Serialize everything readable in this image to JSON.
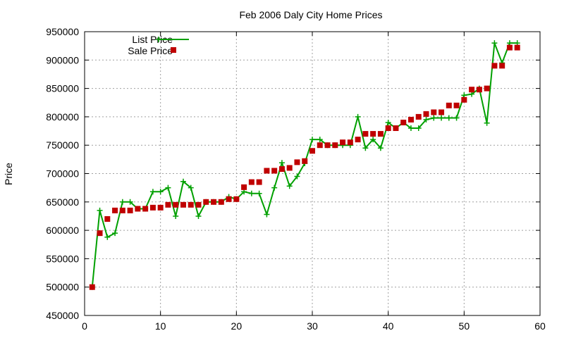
{
  "chart_data": {
    "type": "scatter",
    "title": "Feb 2006 Daly City Home Prices",
    "xlabel": "",
    "ylabel": "Price",
    "xlim": [
      0,
      60
    ],
    "ylim": [
      450000,
      950000
    ],
    "x_ticks": [
      0,
      10,
      20,
      30,
      40,
      50,
      60
    ],
    "y_ticks": [
      450000,
      500000,
      550000,
      600000,
      650000,
      700000,
      750000,
      800000,
      850000,
      900000,
      950000
    ],
    "grid": true,
    "legend_position": "top-left",
    "series": [
      {
        "name": "List Price",
        "style": "line-points",
        "color": "#00a000",
        "x": [
          1,
          2,
          3,
          4,
          5,
          6,
          7,
          8,
          9,
          10,
          11,
          12,
          13,
          14,
          15,
          16,
          17,
          18,
          19,
          20,
          21,
          22,
          23,
          24,
          25,
          26,
          27,
          28,
          29,
          30,
          31,
          32,
          33,
          34,
          35,
          36,
          37,
          38,
          39,
          40,
          41,
          42,
          43,
          44,
          45,
          46,
          47,
          48,
          49,
          50,
          51,
          52,
          53,
          54,
          55,
          56,
          57
        ],
        "y": [
          500000,
          635000,
          588000,
          595000,
          650000,
          650000,
          638000,
          638000,
          668000,
          668000,
          675000,
          625000,
          686000,
          675000,
          625000,
          650000,
          650000,
          650000,
          659000,
          655000,
          668000,
          665000,
          665000,
          628000,
          675000,
          719000,
          678000,
          695000,
          718000,
          760000,
          760000,
          750000,
          750000,
          750000,
          750000,
          800000,
          745000,
          760000,
          745000,
          790000,
          780000,
          790000,
          780000,
          780000,
          795000,
          798000,
          798000,
          798000,
          798000,
          838000,
          840000,
          850000,
          789000,
          930000,
          895000,
          930000,
          930000
        ]
      },
      {
        "name": "Sale Price",
        "style": "points",
        "color": "#c00000",
        "x": [
          1,
          2,
          3,
          4,
          5,
          6,
          7,
          8,
          9,
          10,
          11,
          12,
          13,
          14,
          15,
          16,
          17,
          18,
          19,
          20,
          21,
          22,
          23,
          24,
          25,
          26,
          27,
          28,
          29,
          30,
          31,
          32,
          33,
          34,
          35,
          36,
          37,
          38,
          39,
          40,
          41,
          42,
          43,
          44,
          45,
          46,
          47,
          48,
          49,
          50,
          51,
          52,
          53,
          54,
          55,
          56,
          57
        ],
        "y": [
          500000,
          595000,
          620000,
          635000,
          635000,
          635000,
          638000,
          638000,
          640000,
          640000,
          645000,
          645000,
          645000,
          645000,
          645000,
          650000,
          650000,
          650000,
          655000,
          655000,
          676000,
          685000,
          685000,
          705000,
          705000,
          708000,
          710000,
          720000,
          722000,
          740000,
          750000,
          750000,
          750000,
          755000,
          755000,
          760000,
          770000,
          770000,
          770000,
          780000,
          780000,
          790000,
          795000,
          800000,
          805000,
          808000,
          808000,
          820000,
          820000,
          830000,
          848000,
          848000,
          850000,
          890000,
          890000,
          922000,
          922000
        ]
      }
    ]
  }
}
